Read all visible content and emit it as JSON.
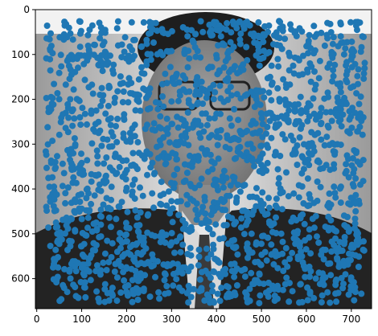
{
  "chart_data": {
    "type": "scatter",
    "title": "",
    "xlabel": "",
    "ylabel": "",
    "xlim": [
      -3,
      745
    ],
    "ylim": [
      667,
      0
    ],
    "y_inverted": true,
    "background_image": "grayscale-portrait-photo",
    "grid": false,
    "legend": "none",
    "x_ticks": [
      {
        "value": 0,
        "label": "0"
      },
      {
        "value": 100,
        "label": "100"
      },
      {
        "value": 200,
        "label": "200"
      },
      {
        "value": 300,
        "label": "300"
      },
      {
        "value": 400,
        "label": "400"
      },
      {
        "value": 500,
        "label": "500"
      },
      {
        "value": 600,
        "label": "600"
      },
      {
        "value": 700,
        "label": "700"
      }
    ],
    "y_ticks": [
      {
        "value": 0,
        "label": "0"
      },
      {
        "value": 100,
        "label": "100"
      },
      {
        "value": 200,
        "label": "200"
      },
      {
        "value": 300,
        "label": "300"
      },
      {
        "value": 400,
        "label": "400"
      },
      {
        "value": 500,
        "label": "500"
      },
      {
        "value": 600,
        "label": "600"
      }
    ],
    "marker_color": "#1f77b4",
    "point_count_estimate": 1800,
    "points_region": {
      "x": [
        20,
        730
      ],
      "y": [
        25,
        655
      ]
    }
  }
}
